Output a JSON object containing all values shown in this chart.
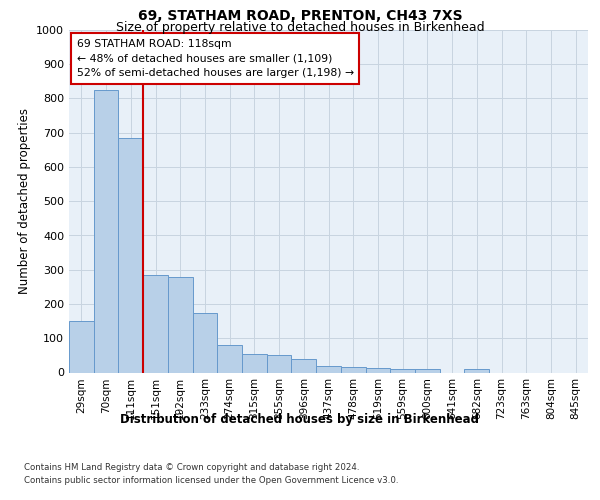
{
  "title1": "69, STATHAM ROAD, PRENTON, CH43 7XS",
  "title2": "Size of property relative to detached houses in Birkenhead",
  "xlabel": "Distribution of detached houses by size in Birkenhead",
  "ylabel": "Number of detached properties",
  "categories": [
    "29sqm",
    "70sqm",
    "111sqm",
    "151sqm",
    "192sqm",
    "233sqm",
    "274sqm",
    "315sqm",
    "355sqm",
    "396sqm",
    "437sqm",
    "478sqm",
    "519sqm",
    "559sqm",
    "600sqm",
    "641sqm",
    "682sqm",
    "723sqm",
    "763sqm",
    "804sqm",
    "845sqm"
  ],
  "values": [
    150,
    825,
    685,
    285,
    280,
    175,
    80,
    55,
    52,
    40,
    20,
    15,
    12,
    10,
    10,
    0,
    10,
    0,
    0,
    0,
    0
  ],
  "bar_color": "#b8d0e8",
  "bar_edge_color": "#6699cc",
  "marker_color": "#cc0000",
  "annotation_text": "69 STATHAM ROAD: 118sqm\n← 48% of detached houses are smaller (1,109)\n52% of semi-detached houses are larger (1,198) →",
  "annotation_box_color": "#ffffff",
  "annotation_box_edge_color": "#cc0000",
  "ylim": [
    0,
    1000
  ],
  "yticks": [
    0,
    100,
    200,
    300,
    400,
    500,
    600,
    700,
    800,
    900,
    1000
  ],
  "grid_color": "#c8d4e0",
  "background_color": "#e8f0f8",
  "title1_fontsize": 10,
  "title2_fontsize": 9,
  "footer_line1": "Contains HM Land Registry data © Crown copyright and database right 2024.",
  "footer_line2": "Contains public sector information licensed under the Open Government Licence v3.0."
}
